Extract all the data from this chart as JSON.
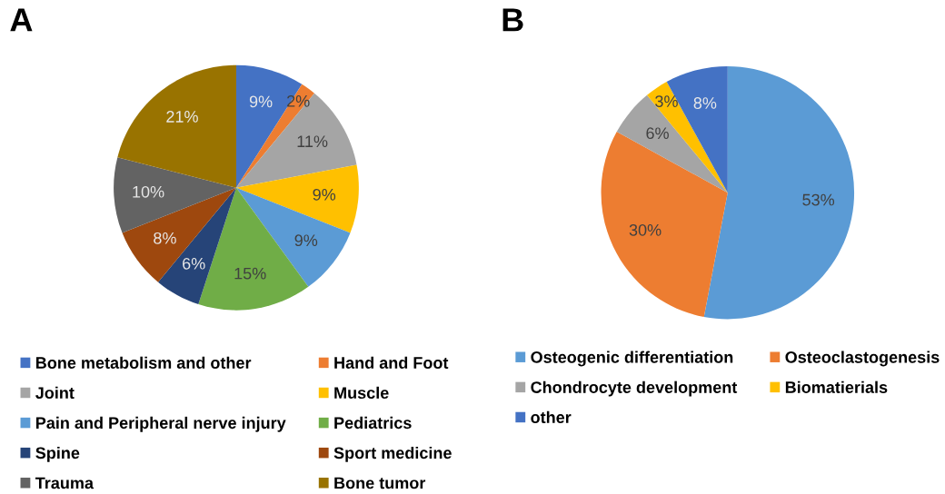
{
  "chart_data": [
    {
      "type": "pie",
      "title": "A",
      "categories": [
        "Bone metabolism and other",
        "Hand and Foot",
        "Joint",
        "Muscle",
        "Pain and Peripheral nerve injury",
        "Pediatrics",
        "Spine",
        "Sport medicine",
        "Trauma",
        "Bone tumor"
      ],
      "values": [
        9,
        2,
        11,
        9,
        9,
        15,
        6,
        8,
        10,
        21
      ],
      "value_labels": [
        "9%",
        "2%",
        "11%",
        "9%",
        "9%",
        "15%",
        "6%",
        "8%",
        "10%",
        "21%"
      ],
      "colors": [
        "#4472c4",
        "#ed7d31",
        "#a5a5a5",
        "#ffc000",
        "#5b9bd5",
        "#70ad47",
        "#264478",
        "#9e480e",
        "#636363",
        "#997300"
      ],
      "legend": "bottom"
    },
    {
      "type": "pie",
      "title": "B",
      "categories": [
        "Osteogenic differentiation",
        "Osteoclastogenesis",
        "Chondrocyte development",
        "Biomatierials",
        "other"
      ],
      "values": [
        53,
        30,
        6,
        3,
        8
      ],
      "value_labels": [
        "53%",
        "30%",
        "6%",
        "3%",
        "8%"
      ],
      "colors": [
        "#5b9bd5",
        "#ed7d31",
        "#a5a5a5",
        "#ffc000",
        "#4472c4"
      ],
      "legend": "bottom"
    }
  ]
}
